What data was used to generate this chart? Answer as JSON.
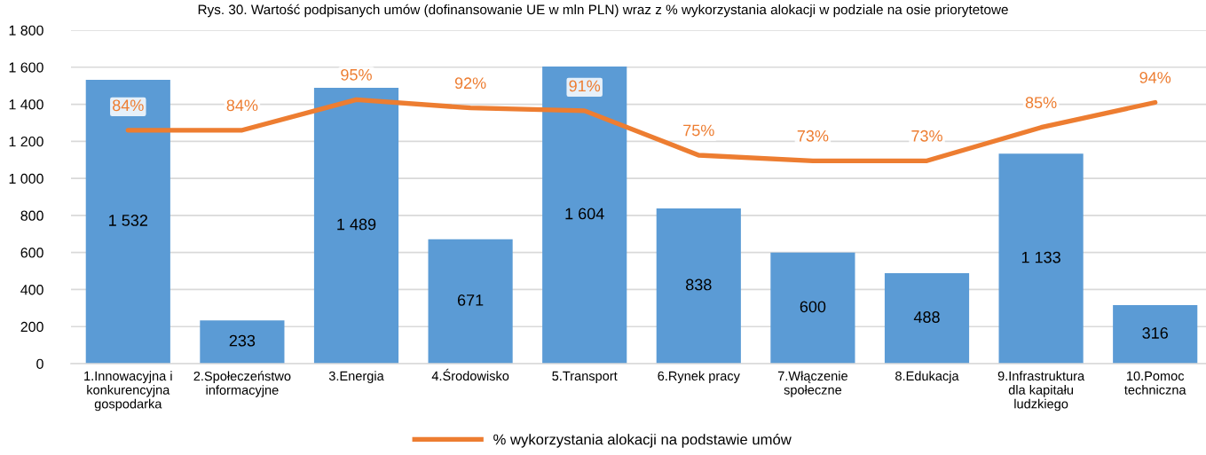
{
  "chart_data": {
    "type": "bar",
    "title": "Rys. 30. Wartość podpisanych umów (dofinansowanie UE w mln PLN) wraz z % wykorzystania alokacji w podziale na osie priorytetowe",
    "categories": [
      "1.Innowacyjna i\nkonkurencyjna\ngospodarka",
      "2.Społeczeństwo\ninformacyjne",
      "3.Energia",
      "4.Środowisko",
      "5.Transport",
      "6.Rynek pracy",
      "7.Włączenie\nspołeczne",
      "8.Edukacja",
      "9.Infrastruktura\ndla kapitału\nludzkiego",
      "10.Pomoc\ntechniczna"
    ],
    "series": [
      {
        "color": "#5b9bd5",
        "values": [
          1532,
          233,
          1489,
          671,
          1604,
          838,
          600,
          488,
          1133,
          316
        ],
        "value_labels": [
          "1 532",
          "233",
          "1 489",
          "671",
          "1 604",
          "838",
          "600",
          "488",
          "1 133",
          "316"
        ]
      },
      {
        "type": "line",
        "name": "% wykorzystania alokacji na podstawie umów",
        "color": "#ed7d31",
        "axis": "y2",
        "values": [
          84,
          84,
          95,
          92,
          91,
          75,
          73,
          73,
          85,
          94
        ],
        "value_labels": [
          "84%",
          "84%",
          "95%",
          "92%",
          "91%",
          "75%",
          "73%",
          "73%",
          "85%",
          "94%"
        ]
      }
    ],
    "ylim": [
      0,
      1800
    ],
    "yticks": [
      0,
      200,
      400,
      600,
      800,
      {
        "value": 1000,
        "label": "1 000"
      },
      {
        "value": 1200,
        "label": "1 200"
      },
      {
        "value": 1400,
        "label": "1 400"
      },
      {
        "value": 1600,
        "label": "1 600"
      },
      {
        "value": 1800,
        "label": "1 800"
      }
    ],
    "y2lim": [
      0,
      120
    ],
    "grid": "y",
    "legend": "bottom",
    "tick_labels": "xy"
  }
}
